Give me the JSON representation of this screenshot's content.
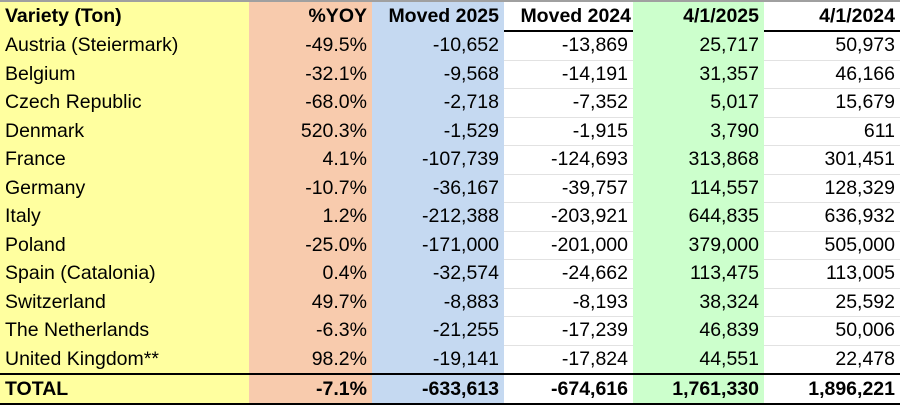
{
  "table": {
    "headers": [
      "Variety (Ton)",
      "%YOY",
      "Moved 2025",
      "Moved 2024",
      "4/1/2025",
      "4/1/2024"
    ],
    "rows": [
      [
        "Austria (Steiermark)",
        "-49.5%",
        "-10,652",
        "-13,869",
        "25,717",
        "50,973"
      ],
      [
        "Belgium",
        "-32.1%",
        "-9,568",
        "-14,191",
        "31,357",
        "46,166"
      ],
      [
        "Czech Republic",
        "-68.0%",
        "-2,718",
        "-7,352",
        "5,017",
        "15,679"
      ],
      [
        "Denmark",
        "520.3%",
        "-1,529",
        "-1,915",
        "3,790",
        "611"
      ],
      [
        "France",
        "4.1%",
        "-107,739",
        "-124,693",
        "313,868",
        "301,451"
      ],
      [
        "Germany",
        "-10.7%",
        "-36,167",
        "-39,757",
        "114,557",
        "128,329"
      ],
      [
        "Italy",
        "1.2%",
        "-212,388",
        "-203,921",
        "644,835",
        "636,932"
      ],
      [
        "Poland",
        "-25.0%",
        "-171,000",
        "-201,000",
        "379,000",
        "505,000"
      ],
      [
        "Spain (Catalonia)",
        "0.4%",
        "-32,574",
        "-24,662",
        "113,475",
        "113,005"
      ],
      [
        "Switzerland",
        "49.7%",
        "-8,883",
        "-8,193",
        "38,324",
        "25,592"
      ],
      [
        "The Netherlands",
        "-6.3%",
        "-21,255",
        "-17,239",
        "46,839",
        "50,006"
      ],
      [
        "United Kingdom**",
        "98.2%",
        "-19,141",
        "-17,824",
        "44,551",
        "22,478"
      ]
    ],
    "total": [
      "TOTAL",
      "-7.1%",
      "-633,613",
      "-674,616",
      "1,761,330",
      "1,896,221"
    ]
  },
  "colors": {
    "variety": "#ffff9f",
    "yoy": "#f8cbad",
    "moved2025": "#c5d9f1",
    "date2025": "#ccffcc"
  }
}
